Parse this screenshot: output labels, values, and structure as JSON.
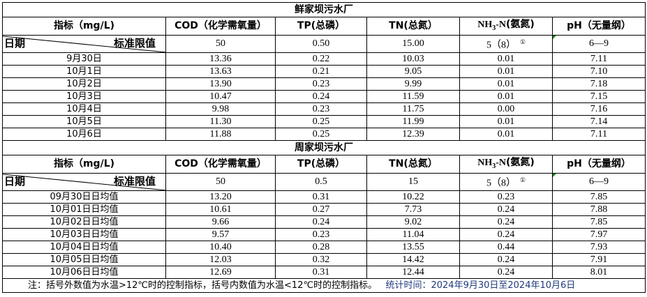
{
  "tables": [
    {
      "title": "鲜家坝污水厂",
      "headers": [
        "指标（mg/L)",
        "COD（化学需氧量）",
        "TP(总磷）",
        "TN(总氮）",
        "NH3-N(氨氮)",
        "pH（无量纲）"
      ],
      "diag_left": "日期",
      "diag_right": "标准限值",
      "standards": [
        "50",
        "0.50",
        "15.00",
        "5（8）",
        "6—9"
      ],
      "footnote_mark": "①",
      "rows": [
        [
          "9月30日",
          "13.36",
          "0.22",
          "10.03",
          "0.01",
          "7.11"
        ],
        [
          "10月1日",
          "13.63",
          "0.21",
          "9.05",
          "0.01",
          "7.10"
        ],
        [
          "10月2日",
          "13.90",
          "0.23",
          "9.99",
          "0.01",
          "7.18"
        ],
        [
          "10月3日",
          "10.47",
          "0.24",
          "11.59",
          "0.01",
          "7.15"
        ],
        [
          "10月4日",
          "9.98",
          "0.23",
          "11.75",
          "0.00",
          "7.16"
        ],
        [
          "10月5日",
          "11.30",
          "0.25",
          "11.99",
          "0.01",
          "7.14"
        ],
        [
          "10月6日",
          "11.88",
          "0.25",
          "12.39",
          "0.01",
          "7.11"
        ]
      ]
    },
    {
      "title": "周家坝污水厂",
      "headers": [
        "指标（mg/L)",
        "COD（化学需氧量）",
        "TP(总磷）",
        "TN(总氮）",
        "NH3-N(氨氮)",
        "pH（无量纲）"
      ],
      "diag_left": "日期",
      "diag_right": "标准限值",
      "standards": [
        "50",
        "0.5",
        "15",
        "5（8）",
        "6—9"
      ],
      "footnote_mark": "①",
      "rows": [
        [
          "09月30日日均值",
          "13.20",
          "0.31",
          "10.22",
          "0.23",
          "7.85"
        ],
        [
          "10月01日日均值",
          "10.61",
          "0.27",
          "7.73",
          "0.24",
          "7.88"
        ],
        [
          "10月02日日均值",
          "9.66",
          "0.24",
          "9.02",
          "0.24",
          "7.85"
        ],
        [
          "10月03日日均值",
          "9.57",
          "0.23",
          "11.04",
          "0.24",
          "7.97"
        ],
        [
          "10月04日日均值",
          "10.40",
          "0.28",
          "13.55",
          "0.44",
          "7.93"
        ],
        [
          "10月05日日均值",
          "12.03",
          "0.32",
          "14.42",
          "0.24",
          "7.91"
        ],
        [
          "10月06日日均值",
          "12.69",
          "0.31",
          "12.44",
          "0.24",
          "8.01"
        ]
      ]
    }
  ],
  "note": {
    "text": "注：括号外数值为水温>12℃时的控制指标，括号内数值为水温<12℃时的控制指标。",
    "time": "统计时间：2024年9月30日至2024年10月6日"
  },
  "colors": {
    "border": "#000000",
    "comment_marker": "#1a8a1a",
    "note_time": "#1f3a7a"
  }
}
